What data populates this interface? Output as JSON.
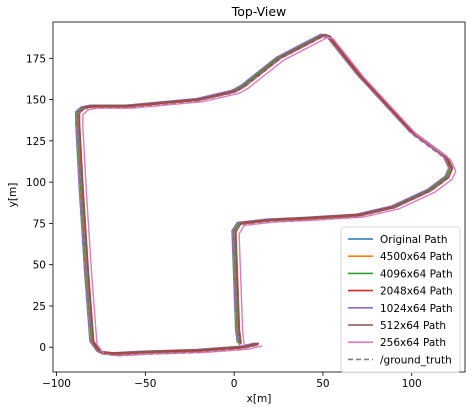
{
  "chart_data": {
    "type": "line",
    "title": "Top-View",
    "xlabel": "x[m]",
    "ylabel": "y[m]",
    "xlim": [
      -102,
      130
    ],
    "ylim": [
      -15,
      197
    ],
    "xticks": [
      -100,
      -50,
      0,
      50,
      100
    ],
    "yticks": [
      0,
      25,
      50,
      75,
      100,
      125,
      150,
      175
    ],
    "grid": false,
    "legend_position": "lower-right",
    "series": [
      {
        "name": "Original Path",
        "color": "#1f77b4",
        "dash": "solid",
        "offset": [
          0,
          0
        ]
      },
      {
        "name": "4500x64 Path",
        "color": "#ff7f0e",
        "dash": "solid",
        "offset": [
          0.5,
          0.3
        ]
      },
      {
        "name": "4096x64 Path",
        "color": "#2ca02c",
        "dash": "solid",
        "offset": [
          -0.4,
          0.4
        ]
      },
      {
        "name": "2048x64 Path",
        "color": "#d62728",
        "dash": "solid",
        "offset": [
          0.8,
          -0.3
        ]
      },
      {
        "name": "1024x64 Path",
        "color": "#9467bd",
        "dash": "solid",
        "offset": [
          -1.2,
          0.6
        ]
      },
      {
        "name": "512x64 Path",
        "color": "#8c564b",
        "dash": "solid",
        "offset": [
          1.0,
          0.5
        ]
      },
      {
        "name": "256x64 Path",
        "color": "#e377c2",
        "dash": "solid",
        "offset": [
          2.8,
          -1.2
        ]
      },
      {
        "name": "/ground_truth",
        "color": "#7f7f7f",
        "dash": "dashed",
        "offset": [
          0,
          -0.8
        ]
      }
    ],
    "path": {
      "x": [
        13,
        5,
        -20,
        -50,
        -68,
        -76,
        -80,
        -83,
        -86,
        -88,
        -88,
        -85,
        -80,
        -60,
        -20,
        0,
        5,
        25,
        50,
        53,
        70,
        100,
        119,
        122,
        120,
        110,
        90,
        70,
        40,
        20,
        3,
        0,
        1,
        2,
        3
      ],
      "y": [
        2,
        0,
        -2,
        -3,
        -4,
        -3,
        3,
        45,
        95,
        135,
        142,
        145,
        146,
        146,
        150,
        155,
        158,
        175,
        189,
        188,
        165,
        130,
        115,
        108,
        103,
        95,
        85,
        80,
        78,
        77,
        75,
        70,
        40,
        10,
        2
      ]
    }
  }
}
